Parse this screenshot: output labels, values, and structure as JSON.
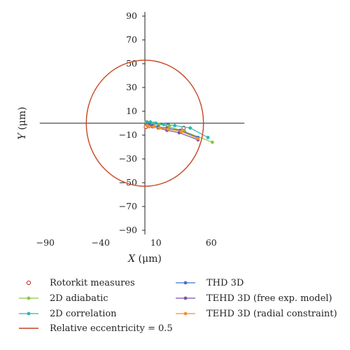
{
  "chart_data": {
    "type": "scatter",
    "title": "",
    "xlabel": {
      "var": "X",
      "unit": " (μm)"
    },
    "ylabel": {
      "var": "Y",
      "unit": " (μm)"
    },
    "xlim": [
      -90,
      90
    ],
    "ylim": [
      -90,
      90
    ],
    "xticks": [
      -90,
      -40,
      10,
      60
    ],
    "yticks": [
      90,
      70,
      50,
      30,
      10,
      -10,
      -30,
      -50,
      -70,
      -90
    ],
    "grid": false,
    "legend_position": "bottom",
    "series": [
      {
        "name": "Rotorkit measures",
        "style": "open-marker",
        "color": "#c0392b",
        "x": [
          1,
          3,
          6,
          10,
          21,
          35
        ],
        "y": [
          -3,
          -2,
          -2,
          -1,
          -2,
          -4
        ]
      },
      {
        "name": "2D adiabatic",
        "style": "line-marker",
        "color": "#8dc63f",
        "x": [
          1,
          4,
          8,
          13,
          22,
          36,
          61
        ],
        "y": [
          1,
          0,
          0,
          -1,
          -3,
          -7,
          -16
        ]
      },
      {
        "name": "2D correlation",
        "style": "line-marker",
        "color": "#2bb5b5",
        "x": [
          2,
          5,
          10,
          17,
          27,
          41,
          57
        ],
        "y": [
          1,
          1,
          0,
          -1,
          -2,
          -4,
          -12
        ]
      },
      {
        "name": "Relative eccentricity = 0.5",
        "style": "circle",
        "color": "#c8441e",
        "cx": 0,
        "cy": 0,
        "r": 53
      },
      {
        "name": "THD 3D",
        "style": "line-marker",
        "color": "#4472c4",
        "x": [
          2,
          4,
          7,
          12,
          20,
          32,
          48
        ],
        "y": [
          -1,
          -1,
          -2,
          -3,
          -4,
          -6,
          -12
        ]
      },
      {
        "name": "TEHD 3D (free exp. model)",
        "style": "line-marker",
        "color": "#7b52a8",
        "x": [
          2,
          4,
          7,
          12,
          20,
          31,
          48
        ],
        "y": [
          -2,
          -2,
          -3,
          -4,
          -6,
          -8,
          -14
        ]
      },
      {
        "name": "TEHD 3D (radial constraint)",
        "style": "line-marker",
        "color": "#f4912f",
        "x": [
          2,
          4,
          8,
          13,
          21,
          33,
          48
        ],
        "y": [
          -2,
          -3,
          -3,
          -4,
          -5,
          -7,
          -13
        ]
      }
    ]
  }
}
